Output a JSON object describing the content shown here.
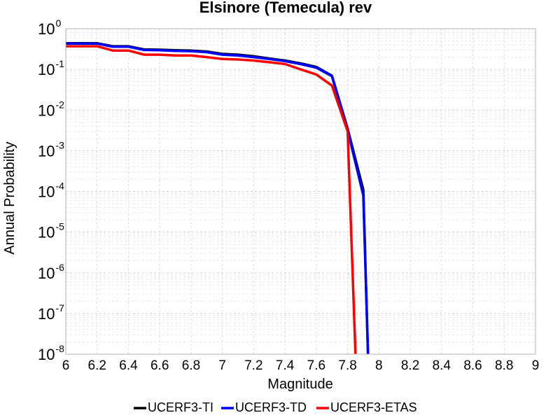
{
  "chart_data": {
    "type": "line",
    "title": "Elsinore (Temecula) rev",
    "xlabel": "Magnitude",
    "ylabel": "Annual Probability",
    "xlim": [
      6,
      9
    ],
    "ylim": [
      1e-08,
      1
    ],
    "y_scale": "log",
    "grid": true,
    "legend_position": "bottom",
    "x_ticks": [
      "6",
      "6.2",
      "6.4",
      "6.6",
      "6.8",
      "7",
      "7.2",
      "7.4",
      "7.6",
      "7.8",
      "8",
      "8.2",
      "8.4",
      "8.6",
      "8.8",
      "9"
    ],
    "y_ticks": [
      {
        "base": "10",
        "exp": "0"
      },
      {
        "base": "10",
        "exp": "-1"
      },
      {
        "base": "10",
        "exp": "-2"
      },
      {
        "base": "10",
        "exp": "-3"
      },
      {
        "base": "10",
        "exp": "-4"
      },
      {
        "base": "10",
        "exp": "-5"
      },
      {
        "base": "10",
        "exp": "-6"
      },
      {
        "base": "10",
        "exp": "-7"
      },
      {
        "base": "10",
        "exp": "-8"
      }
    ],
    "series": [
      {
        "name": "UCERF3-TI",
        "color": "#000000",
        "x": [
          6.0,
          6.1,
          6.2,
          6.3,
          6.4,
          6.5,
          6.6,
          6.7,
          6.8,
          6.9,
          7.0,
          7.1,
          7.2,
          7.3,
          7.4,
          7.5,
          7.6,
          7.7,
          7.8,
          7.9,
          7.93
        ],
        "y": [
          0.44,
          0.44,
          0.44,
          0.37,
          0.37,
          0.31,
          0.305,
          0.295,
          0.29,
          0.275,
          0.24,
          0.23,
          0.21,
          0.185,
          0.165,
          0.14,
          0.115,
          0.07,
          0.0035,
          0.00011,
          1e-08
        ]
      },
      {
        "name": "UCERF3-TD",
        "color": "#0000ff",
        "x": [
          6.0,
          6.1,
          6.2,
          6.3,
          6.4,
          6.5,
          6.6,
          6.7,
          6.8,
          6.9,
          7.0,
          7.1,
          7.2,
          7.3,
          7.4,
          7.5,
          7.6,
          7.7,
          7.8,
          7.9,
          7.93
        ],
        "y": [
          0.43,
          0.43,
          0.43,
          0.36,
          0.36,
          0.3,
          0.295,
          0.285,
          0.28,
          0.265,
          0.23,
          0.22,
          0.2,
          0.18,
          0.16,
          0.135,
          0.11,
          0.068,
          0.0032,
          8e-05,
          1e-08
        ]
      },
      {
        "name": "UCERF3-ETAS",
        "color": "#ff0000",
        "x": [
          6.0,
          6.1,
          6.2,
          6.3,
          6.4,
          6.5,
          6.6,
          6.7,
          6.8,
          6.9,
          7.0,
          7.1,
          7.2,
          7.3,
          7.4,
          7.5,
          7.6,
          7.7,
          7.8,
          7.85
        ],
        "y": [
          0.37,
          0.37,
          0.37,
          0.29,
          0.29,
          0.23,
          0.23,
          0.22,
          0.22,
          0.2,
          0.18,
          0.175,
          0.165,
          0.15,
          0.135,
          0.1,
          0.075,
          0.04,
          0.003,
          1e-08
        ]
      }
    ]
  }
}
